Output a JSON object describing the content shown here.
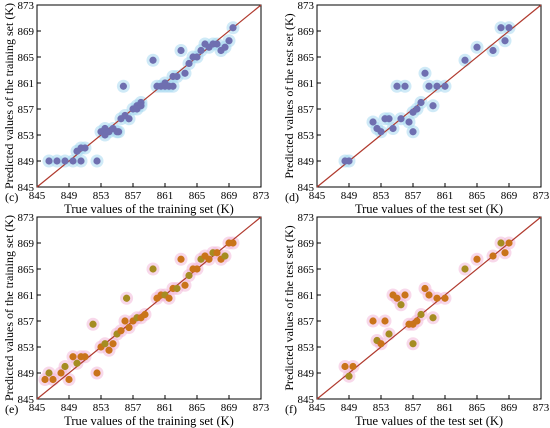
{
  "chart_data": [
    {
      "type": "scatter",
      "panel_label": "(c)",
      "xlabel": "True values of the training set (K)",
      "ylabel": "Predicted values of the training set (K)",
      "xlim": [
        845,
        873
      ],
      "ylim": [
        845,
        873
      ],
      "ticks": [
        "845",
        "849",
        "853",
        "857",
        "861",
        "865",
        "869",
        "873"
      ],
      "diagonal": true,
      "colors": {
        "point": "#6f6fb0",
        "halo": "#a8d8f0",
        "line": "#b03a2e"
      },
      "x": [
        846.5,
        847.5,
        848.5,
        849.5,
        850,
        850.5,
        850.5,
        851,
        852.5,
        853,
        853.5,
        853.5,
        854,
        854.5,
        855,
        855.2,
        855.5,
        855.8,
        856,
        856.5,
        857,
        857.5,
        857.5,
        858,
        858,
        859.5,
        860,
        860.5,
        861,
        861,
        861.5,
        862,
        862,
        862.5,
        863,
        863.5,
        864,
        864.5,
        865,
        865.5,
        866,
        866.5,
        867,
        867.5,
        868,
        868.5,
        869,
        869.5
      ],
      "y": [
        849,
        849,
        849,
        849,
        850.5,
        849,
        851,
        851,
        849,
        853.5,
        853,
        854,
        853.5,
        854,
        853.5,
        853.5,
        855.5,
        860.5,
        856,
        855.5,
        857,
        857.5,
        857,
        858,
        857.5,
        864.5,
        860.5,
        860.5,
        861,
        860.5,
        860.5,
        862,
        860.5,
        862,
        866,
        862.5,
        864,
        865,
        865,
        866,
        867,
        866.5,
        867,
        867,
        866,
        866.5,
        867.5,
        869.5
      ]
    },
    {
      "type": "scatter",
      "panel_label": "(d)",
      "xlabel": "True values of the test set (K)",
      "ylabel": "Predicted values of the test set (K)",
      "xlim": [
        845,
        873
      ],
      "ylim": [
        845,
        873
      ],
      "ticks": [
        "845",
        "849",
        "853",
        "857",
        "861",
        "865",
        "869",
        "873"
      ],
      "diagonal": true,
      "colors": {
        "point": "#6f6fb0",
        "halo": "#a8d8f0",
        "line": "#b03a2e"
      },
      "x": [
        848.5,
        849,
        852,
        852.5,
        853,
        853.5,
        854,
        854.5,
        855,
        855.5,
        856,
        856.5,
        857,
        857,
        857.5,
        858,
        858.5,
        859,
        859.5,
        860,
        861,
        863.5,
        865,
        867,
        868,
        868.5,
        869
      ],
      "y": [
        849,
        849,
        855,
        854,
        853.5,
        855.5,
        855.5,
        854,
        860.5,
        855.5,
        860.5,
        855,
        853.5,
        856.5,
        857,
        858,
        862.5,
        860.5,
        857.5,
        860.5,
        860.5,
        864.5,
        866.5,
        866,
        869.5,
        867.5,
        869.5
      ]
    },
    {
      "type": "scatter",
      "panel_label": "(e)",
      "xlabel": "True values of the training set (K)",
      "ylabel": "Predicted values of the training set (K)",
      "xlim": [
        845,
        873
      ],
      "ylim": [
        845,
        873
      ],
      "ticks": [
        "845",
        "849",
        "853",
        "857",
        "861",
        "865",
        "869",
        "873"
      ],
      "diagonal": true,
      "colors": {
        "point": "#c9741a",
        "point_alt": "#a58c22",
        "halo": "#f2b8d8",
        "line": "#b03a2e"
      },
      "x": [
        846,
        846.5,
        847,
        848,
        848.5,
        849,
        849.5,
        850,
        850.5,
        851,
        852,
        852.5,
        853,
        853.5,
        854,
        854.5,
        855,
        855.5,
        856,
        856.2,
        856.5,
        857,
        857.5,
        858,
        858.5,
        859.5,
        860,
        860.5,
        861,
        861.5,
        862,
        862.5,
        863,
        863.5,
        864,
        864.5,
        865,
        865.5,
        866,
        866.5,
        867,
        867.5,
        868,
        868.5,
        869,
        869.5
      ],
      "y": [
        848,
        849,
        848,
        849,
        850,
        848,
        851.5,
        850.5,
        851.5,
        851.5,
        856.5,
        849,
        853,
        853.5,
        852.5,
        853.5,
        855,
        855.5,
        857,
        860.5,
        856,
        857,
        857.5,
        857.5,
        858,
        865,
        860.5,
        861,
        861,
        860.5,
        862,
        862,
        866.5,
        862.5,
        864,
        865,
        865,
        866.5,
        867,
        866.5,
        867.5,
        867.5,
        866.5,
        867,
        869,
        869
      ]
    },
    {
      "type": "scatter",
      "panel_label": "(f)",
      "xlabel": "True values of the test set (K)",
      "ylabel": "Predicted values of the test set (K)",
      "xlim": [
        845,
        873
      ],
      "ylim": [
        845,
        873
      ],
      "ticks": [
        "845",
        "849",
        "853",
        "857",
        "861",
        "865",
        "869",
        "873"
      ],
      "diagonal": true,
      "colors": {
        "point": "#c9741a",
        "point_alt": "#a58c22",
        "halo": "#f2b8d8",
        "line": "#b03a2e"
      },
      "x": [
        848.5,
        849,
        849.5,
        852,
        852.5,
        853,
        853.5,
        854,
        854.5,
        855,
        855.5,
        856,
        856.5,
        857,
        857,
        857.5,
        858,
        858.5,
        859,
        859.5,
        860,
        861,
        863.5,
        865,
        867,
        868,
        868.5,
        869
      ],
      "y": [
        850,
        848.5,
        850,
        857,
        854,
        853.5,
        857,
        855,
        861,
        860.5,
        859.5,
        861,
        856.5,
        853.5,
        856.5,
        857,
        858,
        862,
        861,
        857.5,
        860.5,
        860.5,
        865,
        866.5,
        867,
        869,
        867.5,
        869
      ]
    }
  ]
}
